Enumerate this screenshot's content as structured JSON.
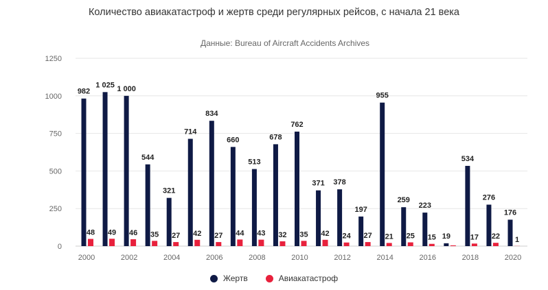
{
  "chart_data": {
    "type": "bar",
    "title": "Количество авиакатастроф и жертв среди регулярных рейсов, с начала 21 века",
    "subtitle": "Данные: Bureau of Aircraft Accidents Archives",
    "xlabel": "",
    "ylabel": "",
    "ylim": [
      0,
      1250
    ],
    "yticks": [
      0,
      250,
      500,
      750,
      1000,
      1250
    ],
    "grid": true,
    "legend_position": "bottom",
    "categories": [
      2000,
      2001,
      2002,
      2003,
      2004,
      2005,
      2006,
      2007,
      2008,
      2009,
      2010,
      2011,
      2012,
      2013,
      2014,
      2015,
      2016,
      2017,
      2018,
      2019,
      2020
    ],
    "xtick_labels": [
      "2000",
      "2002",
      "2004",
      "2006",
      "2008",
      "2010",
      "2012",
      "2014",
      "2016",
      "2018",
      "2020"
    ],
    "series": [
      {
        "name": "Жертв",
        "color": "#0f1a45",
        "values": [
          982,
          1025,
          1000,
          544,
          321,
          714,
          834,
          660,
          513,
          678,
          762,
          371,
          378,
          197,
          955,
          259,
          223,
          19,
          534,
          276,
          176
        ],
        "labels": [
          "982",
          "1 025",
          "1 000",
          "544",
          "321",
          "714",
          "834",
          "660",
          "513",
          "678",
          "762",
          "371",
          "378",
          "197",
          "955",
          "259",
          "223",
          "19",
          "534",
          "276",
          "176"
        ]
      },
      {
        "name": "Авиакатастроф",
        "color": "#e8213c",
        "values": [
          48,
          49,
          46,
          35,
          27,
          42,
          27,
          44,
          43,
          32,
          35,
          42,
          24,
          27,
          21,
          25,
          15,
          5,
          17,
          22,
          1
        ],
        "labels": [
          "48",
          "49",
          "46",
          "35",
          "27",
          "42",
          "27",
          "44",
          "43",
          "32",
          "35",
          "42",
          "24",
          "27",
          "21",
          "25",
          "15",
          "",
          "17",
          "22",
          "1"
        ]
      }
    ]
  }
}
